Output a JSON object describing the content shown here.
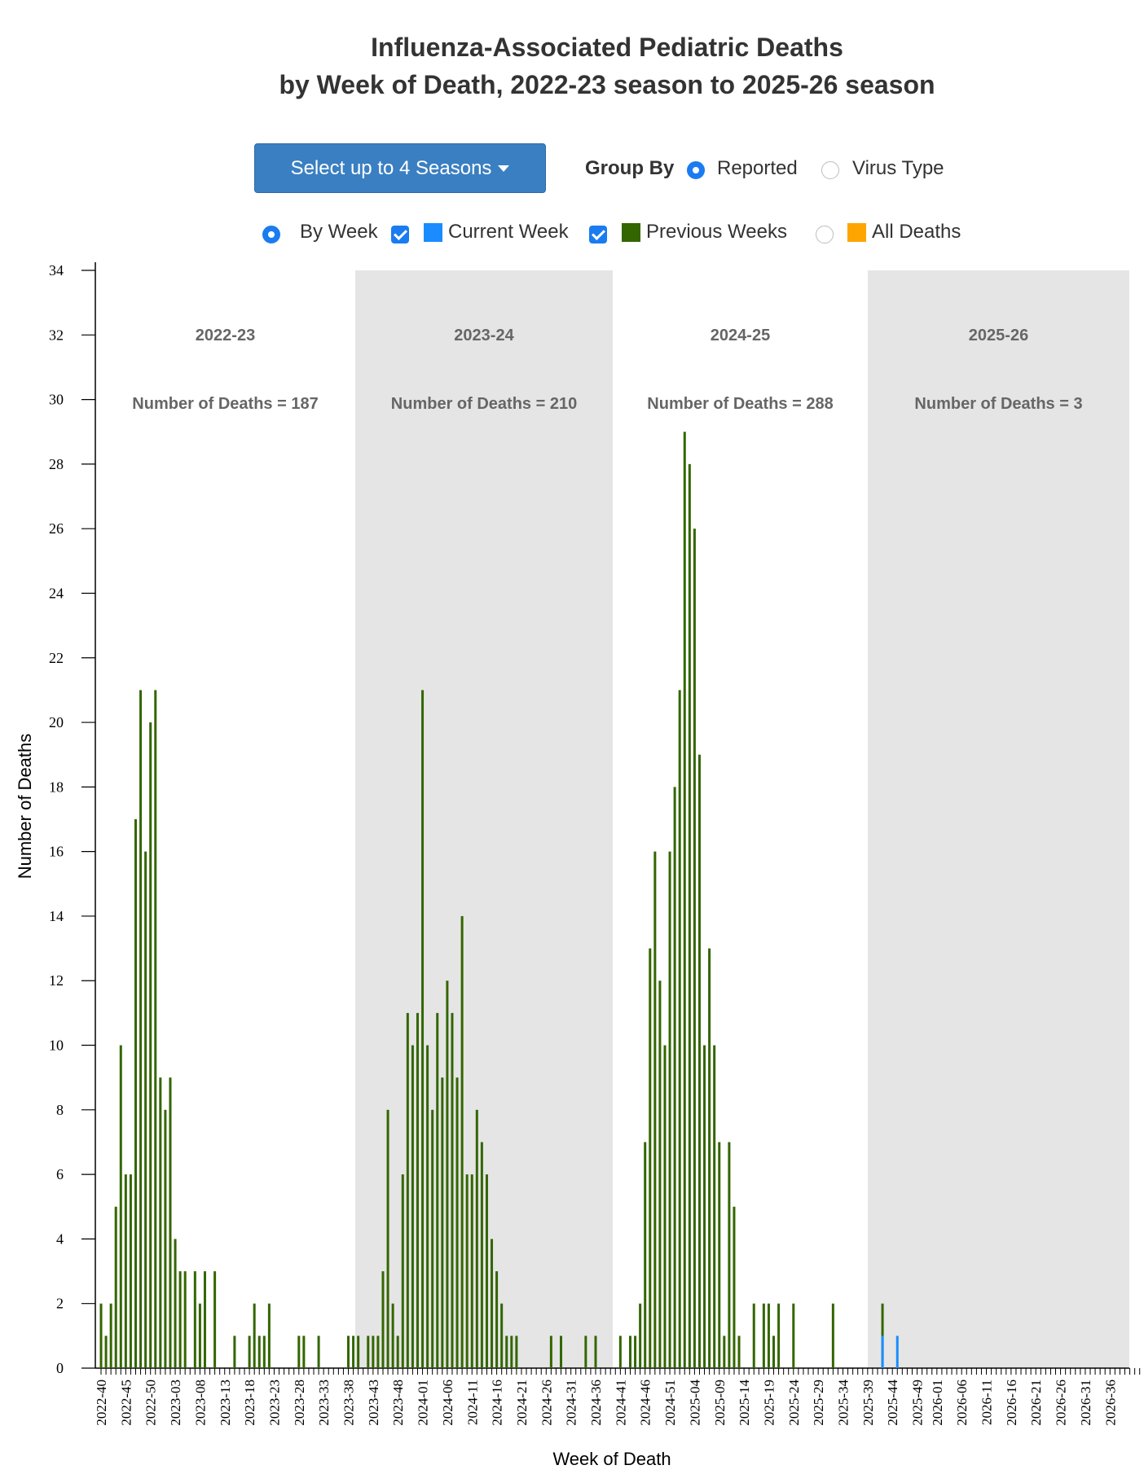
{
  "title_line1": "Influenza-Associated Pediatric Deaths",
  "title_line2": "by Week of Death, 2022-23 season to 2025-26 season",
  "controls": {
    "select_seasons_label": "Select up to 4 Seasons",
    "group_by_label": "Group By",
    "reported_label": "Reported",
    "virus_type_label": "Virus Type",
    "group_by_selected": "Reported",
    "by_week_label": "By Week",
    "by_week_selected": true,
    "current_week_label": "Current Week",
    "current_week_checked": true,
    "previous_weeks_label": "Previous Weeks",
    "previous_weeks_checked": true,
    "all_deaths_label": "All Deaths",
    "all_deaths_selected": false
  },
  "colors": {
    "previous_weeks": "#336600",
    "current_week": "#1a8cff",
    "all_deaths": "#ffa500",
    "season_shade": "#e5e5e5",
    "button": "#3a7fc2",
    "radio_checkbox": "#1a7cf0"
  },
  "chart_data": {
    "type": "bar",
    "xlabel": "Week of Death",
    "ylabel": "Number of Deaths",
    "ylim": [
      0,
      34
    ],
    "yticks": [
      0,
      2,
      4,
      6,
      8,
      10,
      12,
      14,
      16,
      18,
      20,
      22,
      24,
      26,
      28,
      30,
      32,
      34
    ],
    "start_week": "2022-40",
    "end_week": "2026-39",
    "x_tick_labels": [
      "2022-40",
      "2022-45",
      "2022-50",
      "2023-03",
      "2023-08",
      "2023-13",
      "2023-18",
      "2023-23",
      "2023-28",
      "2023-33",
      "2023-38",
      "2023-43",
      "2023-48",
      "2024-01",
      "2024-06",
      "2024-11",
      "2024-16",
      "2024-21",
      "2024-26",
      "2024-31",
      "2024-36",
      "2024-41",
      "2024-46",
      "2024-51",
      "2025-04",
      "2025-09",
      "2025-14",
      "2025-19",
      "2025-24",
      "2025-29",
      "2025-34",
      "2025-39",
      "2025-44",
      "2025-49",
      "2026-01",
      "2026-06",
      "2026-11",
      "2026-16",
      "2026-21",
      "2026-26",
      "2026-31",
      "2026-36"
    ],
    "seasons": [
      {
        "label": "2022-23",
        "deaths_text": "Number of Deaths = 187",
        "shaded": false
      },
      {
        "label": "2023-24",
        "deaths_text": "Number of Deaths = 210",
        "shaded": true
      },
      {
        "label": "2024-25",
        "deaths_text": "Number of Deaths = 288",
        "shaded": false
      },
      {
        "label": "2025-26",
        "deaths_text": "Number of Deaths = 3",
        "shaded": true
      }
    ],
    "series": [
      {
        "name": "Previous Weeks",
        "values": [
          2,
          1,
          2,
          5,
          10,
          6,
          6,
          17,
          21,
          16,
          20,
          21,
          9,
          8,
          9,
          4,
          3,
          3,
          0,
          3,
          2,
          3,
          0,
          3,
          0,
          0,
          0,
          1,
          0,
          0,
          1,
          2,
          1,
          1,
          2,
          0,
          0,
          0,
          0,
          0,
          1,
          1,
          0,
          0,
          1,
          0,
          0,
          0,
          0,
          0,
          1,
          1,
          1,
          0,
          1,
          1,
          1,
          3,
          8,
          2,
          1,
          6,
          11,
          10,
          11,
          21,
          10,
          8,
          11,
          9,
          12,
          11,
          9,
          14,
          6,
          6,
          8,
          7,
          6,
          4,
          3,
          2,
          1,
          1,
          1,
          0,
          0,
          0,
          0,
          0,
          0,
          1,
          0,
          1,
          0,
          0,
          0,
          0,
          1,
          0,
          1,
          0,
          0,
          0,
          0,
          1,
          0,
          1,
          1,
          2,
          7,
          13,
          16,
          12,
          10,
          16,
          18,
          21,
          29,
          28,
          26,
          19,
          10,
          13,
          10,
          7,
          1,
          7,
          5,
          1,
          0,
          0,
          2,
          0,
          2,
          2,
          1,
          2,
          0,
          0,
          2,
          0,
          0,
          0,
          0,
          0,
          0,
          0,
          2,
          0,
          0,
          0,
          0,
          0,
          0,
          0,
          0,
          0,
          2,
          0,
          0,
          0,
          0,
          0,
          0,
          0,
          0,
          0,
          0,
          0,
          0,
          0,
          0,
          0,
          0,
          0,
          0,
          0,
          0,
          0,
          0,
          0,
          0,
          0,
          0,
          0,
          0,
          0,
          0,
          0,
          0,
          0,
          0,
          0,
          0,
          0,
          0,
          0,
          0,
          0,
          0,
          0,
          0,
          0,
          0,
          0,
          0,
          0,
          0,
          0,
          0,
          0
        ]
      },
      {
        "name": "Current Week",
        "values": [
          0,
          0,
          0,
          0,
          0,
          0,
          0,
          0,
          0,
          0,
          0,
          0,
          0,
          0,
          0,
          0,
          0,
          0,
          0,
          0,
          0,
          0,
          0,
          0,
          0,
          0,
          0,
          0,
          0,
          0,
          0,
          0,
          0,
          0,
          0,
          0,
          0,
          0,
          0,
          0,
          0,
          0,
          0,
          0,
          0,
          0,
          0,
          0,
          0,
          0,
          0,
          0,
          0,
          0,
          0,
          0,
          0,
          0,
          0,
          0,
          0,
          0,
          0,
          0,
          0,
          0,
          0,
          0,
          0,
          0,
          0,
          0,
          0,
          0,
          0,
          0,
          0,
          0,
          0,
          0,
          0,
          0,
          0,
          0,
          0,
          0,
          0,
          0,
          0,
          0,
          0,
          0,
          0,
          0,
          0,
          0,
          0,
          0,
          0,
          0,
          0,
          0,
          0,
          0,
          0,
          0,
          0,
          0,
          0,
          0,
          0,
          0,
          0,
          0,
          0,
          0,
          0,
          0,
          0,
          0,
          0,
          0,
          0,
          0,
          0,
          0,
          0,
          0,
          0,
          0,
          0,
          0,
          0,
          0,
          0,
          0,
          0,
          0,
          0,
          0,
          0,
          0,
          0,
          0,
          0,
          0,
          0,
          0,
          0,
          0,
          0,
          0,
          0,
          0,
          0,
          0,
          0,
          0,
          1,
          0,
          0,
          1,
          0,
          0,
          0,
          0,
          0,
          0,
          0,
          0,
          0,
          0,
          0,
          0,
          0,
          0,
          0,
          0,
          0,
          0,
          0,
          0,
          0,
          0,
          0,
          0,
          0,
          0,
          0,
          0,
          0,
          0,
          0,
          0,
          0,
          0,
          0,
          0,
          0,
          0,
          0,
          0,
          0,
          0,
          0,
          0,
          0,
          0,
          0,
          0,
          0,
          0
        ]
      }
    ]
  }
}
